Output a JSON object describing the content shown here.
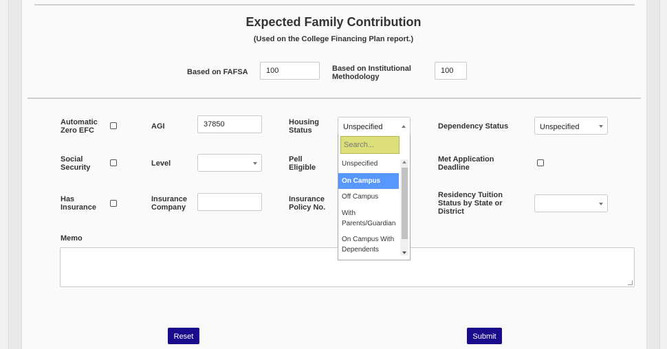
{
  "efc": {
    "title": "Expected Family Contribution",
    "subtitle": "(Used on the College Financing Plan report.)",
    "fafsa_label": "Based on FAFSA",
    "fafsa_value": "100",
    "inst_label_1": "Based on Institutional",
    "inst_label_2": "Methodology",
    "inst_value": "100"
  },
  "form": {
    "auto_zero_1": "Automatic",
    "auto_zero_2": "Zero EFC",
    "agi_label": "AGI",
    "agi_value": "37850",
    "housing_1": "Housing",
    "housing_2": "Status",
    "housing_value": "Unspecified",
    "dependency_label": "Dependency Status",
    "dependency_value": "Unspecified",
    "social_1": "Social",
    "social_2": "Security",
    "level_label": "Level",
    "level_value": "",
    "pell_1": "Pell",
    "pell_2": "Eligible",
    "met_1": "Met Application",
    "met_2": "Deadline",
    "has_ins_1": "Has",
    "has_ins_2": "Insurance",
    "ins_co_1": "Insurance",
    "ins_co_2": "Company",
    "ins_co_value": "",
    "policy_1": "Insurance",
    "policy_2": "Policy No.",
    "residency_1": "Residency Tuition",
    "residency_2": "Status by State or",
    "residency_3": "District",
    "residency_value": "",
    "memo_label": "Memo"
  },
  "dropdown": {
    "search_placeholder": "Search...",
    "options": [
      "Unspecified",
      "On Campus",
      "Off Campus",
      "With",
      "Parents/Guardian",
      "On Campus With",
      "Dependents"
    ],
    "highlight_color": "#5897fb"
  },
  "buttons": {
    "reset": "Reset",
    "submit": "Submit",
    "color": "#1a0a8c"
  }
}
